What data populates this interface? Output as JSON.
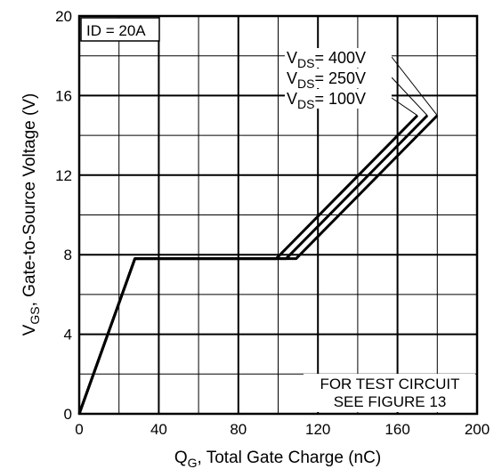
{
  "chart_data": {
    "type": "line",
    "xlabel_main": "Q",
    "xlabel_sub": "G",
    "xlabel_rest": ", Total Gate Charge (nC)",
    "ylabel_main": "V",
    "ylabel_sub": "GS",
    "ylabel_rest": ", Gate-to-Source Voltage (V)",
    "xlim": [
      0,
      200
    ],
    "ylim": [
      0,
      20
    ],
    "x_ticks": [
      0,
      40,
      80,
      120,
      160,
      200
    ],
    "y_ticks": [
      0,
      4,
      8,
      12,
      16,
      20
    ],
    "x_tick_labels": [
      "0",
      "40",
      "80",
      "120",
      "160",
      "200"
    ],
    "y_tick_labels": [
      "0",
      "4",
      "8",
      "12",
      "16",
      "20"
    ],
    "x_minor_step": 20,
    "y_minor_step": 2,
    "grid": true,
    "series": [
      {
        "name": "VDS = 400V",
        "label_main": "V",
        "label_sub": "DS",
        "label_rest": "= 400V",
        "x": [
          0,
          28,
          109,
          180
        ],
        "y": [
          0,
          7.8,
          7.8,
          15
        ]
      },
      {
        "name": "VDS = 250V",
        "label_main": "V",
        "label_sub": "DS",
        "label_rest": "= 250V",
        "x": [
          0,
          28,
          104,
          175
        ],
        "y": [
          0,
          7.8,
          7.8,
          15
        ]
      },
      {
        "name": "VDS = 100V",
        "label_main": "V",
        "label_sub": "DS",
        "label_rest": "= 100V",
        "x": [
          0,
          28,
          99,
          170
        ],
        "y": [
          0,
          7.8,
          7.8,
          15
        ]
      }
    ],
    "annotations": {
      "id_label": "ID = 20A",
      "test_circuit_line1": "FOR TEST CIRCUIT",
      "test_circuit_line2": "SEE FIGURE 13"
    },
    "colors": {
      "line": "#000000",
      "grid": "#000000",
      "background": "#ffffff"
    }
  }
}
